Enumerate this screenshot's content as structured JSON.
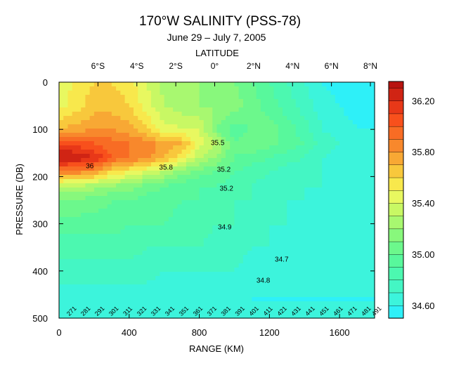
{
  "chart_data": {
    "type": "heatmap",
    "title": "170°W SALINITY (PSS-78)",
    "subtitle": "June 29 – July 7, 2005",
    "top_axis_label": "LATITUDE",
    "xlabel": "RANGE (KM)",
    "ylabel": "PRESSURE (DB)",
    "xlim": [
      0,
      1800
    ],
    "ylim": [
      500,
      0
    ],
    "x_ticks": [
      0,
      400,
      800,
      1200,
      1600
    ],
    "y_ticks": [
      0,
      100,
      200,
      300,
      400,
      500
    ],
    "top_ticks": [
      {
        "label": "6°S",
        "range_km": 222
      },
      {
        "label": "4°S",
        "range_km": 444
      },
      {
        "label": "2°S",
        "range_km": 666
      },
      {
        "label": "0°",
        "range_km": 888
      },
      {
        "label": "2°N",
        "range_km": 1110
      },
      {
        "label": "4°N",
        "range_km": 1332
      },
      {
        "label": "6°N",
        "range_km": 1554
      },
      {
        "label": "8°N",
        "range_km": 1776
      }
    ],
    "colorbar": {
      "levels": [
        34.5,
        34.6,
        34.7,
        34.8,
        34.9,
        35.0,
        35.1,
        35.2,
        35.3,
        35.4,
        35.5,
        35.6,
        35.7,
        35.8,
        35.9,
        36.0,
        36.1,
        36.2,
        36.3,
        36.35
      ],
      "colors": [
        "#2ef0f8",
        "#3cf4dc",
        "#44f6c4",
        "#4cf8b0",
        "#58f89c",
        "#6cf88c",
        "#88f87c",
        "#a8f870",
        "#c8f864",
        "#e8f860",
        "#f8e84c",
        "#f8c83c",
        "#f8a834",
        "#f8882c",
        "#f86c24",
        "#f8501c",
        "#e83818",
        "#d02414",
        "#b81410"
      ],
      "tick_labels": [
        "34.60",
        "35.00",
        "35.40",
        "35.80",
        "36.20"
      ],
      "tick_values": [
        34.6,
        35.0,
        35.4,
        35.8,
        36.2
      ]
    },
    "grid": false,
    "x_km": [
      0,
      100,
      200,
      300,
      400,
      500,
      600,
      700,
      800,
      900,
      1000,
      1100,
      1200,
      1300,
      1400,
      1500,
      1600,
      1700,
      1800
    ],
    "depth_db": [
      0,
      50,
      100,
      130,
      160,
      190,
      220,
      250,
      300,
      350,
      400,
      450,
      500
    ],
    "salinity": [
      [
        35.4,
        35.55,
        35.6,
        35.6,
        35.55,
        35.4,
        35.25,
        35.2,
        35.2,
        35.15,
        35.1,
        35.0,
        34.9,
        34.8,
        34.7,
        34.6,
        34.55,
        34.55,
        34.55
      ],
      [
        35.45,
        35.55,
        35.65,
        35.65,
        35.6,
        35.45,
        35.3,
        35.25,
        35.2,
        35.2,
        35.15,
        35.05,
        34.95,
        34.85,
        34.75,
        34.65,
        34.6,
        34.55,
        34.55
      ],
      [
        35.7,
        35.75,
        35.8,
        35.8,
        35.75,
        35.6,
        35.45,
        35.4,
        35.4,
        35.1,
        34.95,
        35.0,
        35.05,
        34.95,
        34.85,
        34.7,
        34.65,
        34.6,
        34.6
      ],
      [
        36.1,
        36.05,
        36.0,
        35.95,
        35.9,
        35.85,
        35.75,
        35.7,
        35.45,
        35.3,
        35.0,
        35.1,
        35.05,
        34.95,
        34.9,
        34.75,
        34.7,
        34.65,
        34.6
      ],
      [
        36.3,
        36.3,
        36.2,
        36.0,
        35.9,
        35.85,
        35.7,
        35.55,
        35.3,
        35.2,
        35.0,
        34.95,
        34.9,
        34.85,
        34.8,
        34.7,
        34.65,
        34.6,
        34.6
      ],
      [
        35.9,
        35.85,
        35.8,
        35.6,
        35.5,
        35.4,
        35.3,
        35.15,
        35.05,
        35.0,
        34.9,
        34.85,
        34.8,
        34.75,
        34.75,
        34.7,
        34.65,
        34.6,
        34.6
      ],
      [
        35.3,
        35.3,
        35.25,
        35.2,
        35.15,
        35.05,
        35.0,
        34.95,
        34.9,
        34.9,
        34.85,
        34.8,
        34.75,
        34.75,
        34.7,
        34.7,
        34.65,
        34.6,
        34.6
      ],
      [
        35.1,
        35.1,
        35.05,
        35.0,
        35.0,
        34.95,
        34.95,
        34.9,
        34.9,
        34.85,
        34.8,
        34.8,
        34.75,
        34.7,
        34.7,
        34.65,
        34.65,
        34.6,
        34.6
      ],
      [
        34.95,
        34.95,
        34.95,
        34.95,
        34.9,
        34.9,
        34.9,
        34.85,
        34.85,
        34.8,
        34.8,
        34.75,
        34.7,
        34.7,
        34.65,
        34.65,
        34.6,
        34.6,
        34.6
      ],
      [
        34.85,
        34.85,
        34.85,
        34.85,
        34.85,
        34.8,
        34.8,
        34.8,
        34.8,
        34.75,
        34.75,
        34.7,
        34.7,
        34.65,
        34.65,
        34.6,
        34.6,
        34.6,
        34.6
      ],
      [
        34.75,
        34.75,
        34.75,
        34.75,
        34.75,
        34.75,
        34.7,
        34.7,
        34.7,
        34.7,
        34.7,
        34.65,
        34.65,
        34.65,
        34.6,
        34.6,
        34.6,
        34.6,
        34.6
      ],
      [
        34.65,
        34.65,
        34.65,
        34.65,
        34.65,
        34.65,
        34.65,
        34.65,
        34.65,
        34.65,
        34.65,
        34.6,
        34.6,
        34.6,
        34.6,
        34.6,
        34.6,
        34.6,
        34.6
      ],
      [
        34.6,
        34.6,
        34.6,
        34.6,
        34.6,
        34.6,
        34.6,
        34.6,
        34.6,
        34.6,
        34.6,
        34.6,
        34.6,
        34.6,
        34.6,
        34.6,
        34.6,
        34.6,
        34.6
      ]
    ],
    "contour_labels": [
      {
        "text": "36",
        "x_km": 175,
        "depth_db": 182
      },
      {
        "text": "35.8",
        "x_km": 610,
        "depth_db": 185
      },
      {
        "text": "35.5",
        "x_km": 905,
        "depth_db": 133
      },
      {
        "text": "35.2",
        "x_km": 940,
        "depth_db": 190
      },
      {
        "text": "35.2",
        "x_km": 955,
        "depth_db": 230
      },
      {
        "text": "34.9",
        "x_km": 945,
        "depth_db": 312
      },
      {
        "text": "34.8",
        "x_km": 1165,
        "depth_db": 425
      },
      {
        "text": "34.7",
        "x_km": 1270,
        "depth_db": 380
      }
    ],
    "station_labels": [
      "271",
      "281",
      "291",
      "301",
      "311",
      "321",
      "331",
      "341",
      "351",
      "361",
      "371",
      "381",
      "391",
      "401",
      "411",
      "421",
      "431",
      "441",
      "451",
      "461",
      "471",
      "481",
      "491"
    ]
  }
}
